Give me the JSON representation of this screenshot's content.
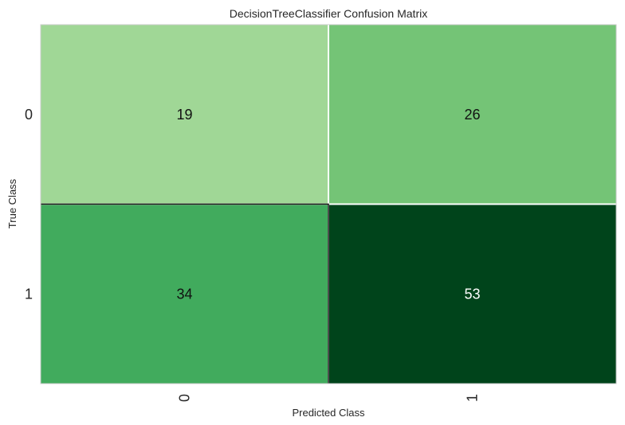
{
  "chart_data": {
    "type": "heatmap",
    "title": "DecisionTreeClassifier Confusion Matrix",
    "xlabel": "Predicted Class",
    "ylabel": "True Class",
    "x_categories": [
      "0",
      "1"
    ],
    "y_categories": [
      "0",
      "1"
    ],
    "values": [
      [
        19,
        26
      ],
      [
        34,
        53
      ]
    ],
    "colormap": "Greens",
    "cell_colors": [
      [
        "#a0d796",
        "#74c476"
      ],
      [
        "#41ab5d",
        "#00441b"
      ]
    ],
    "cell_text_colors": [
      [
        "#111111",
        "#111111"
      ],
      [
        "#111111",
        "#ffffff"
      ]
    ],
    "grid": false
  }
}
